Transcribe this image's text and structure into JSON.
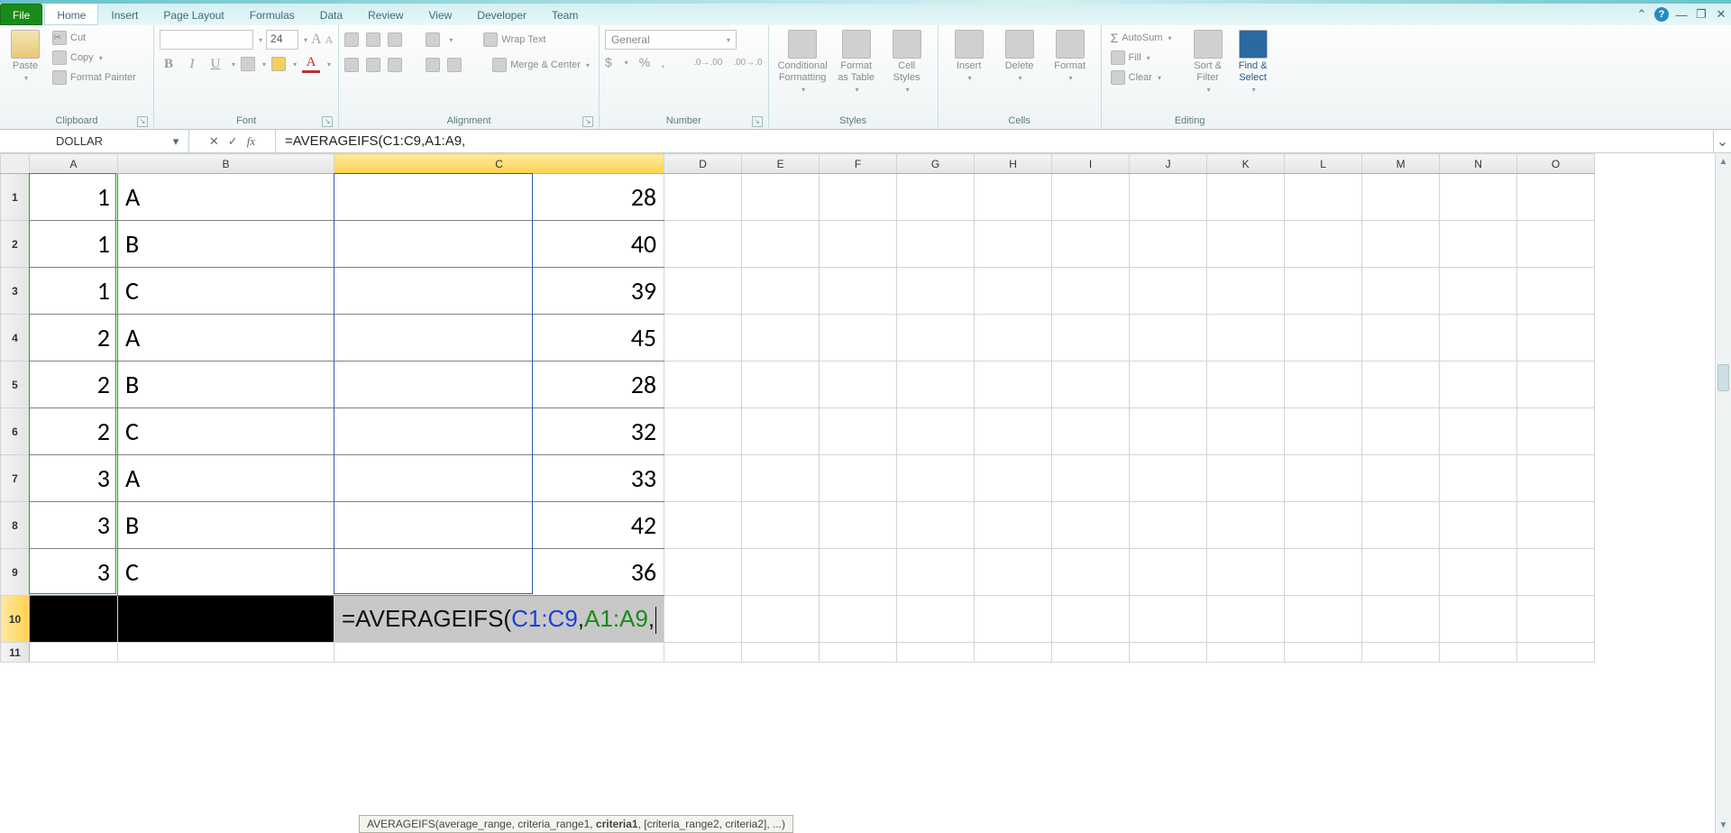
{
  "tabs": {
    "file": "File",
    "list": [
      "Home",
      "Insert",
      "Page Layout",
      "Formulas",
      "Data",
      "Review",
      "View",
      "Developer",
      "Team"
    ],
    "active": "Home"
  },
  "ribbon": {
    "clipboard": {
      "title": "Clipboard",
      "paste": "Paste",
      "cut": "Cut",
      "copy": "Copy",
      "painter": "Format Painter"
    },
    "font": {
      "title": "Font",
      "size": "24"
    },
    "alignment": {
      "title": "Alignment",
      "wrap": "Wrap Text",
      "merge": "Merge & Center"
    },
    "number": {
      "title": "Number",
      "format": "General"
    },
    "styles": {
      "title": "Styles",
      "cond": "Conditional\nFormatting",
      "table": "Format\nas Table",
      "cell": "Cell\nStyles"
    },
    "cells": {
      "title": "Cells",
      "insert": "Insert",
      "delete": "Delete",
      "format": "Format"
    },
    "editing": {
      "title": "Editing",
      "autosum": "AutoSum",
      "fill": "Fill",
      "clear": "Clear",
      "sort": "Sort &\nFilter",
      "find": "Find &\nSelect"
    }
  },
  "formulaBar": {
    "nameBox": "DOLLAR",
    "formula": "=AVERAGEIFS(C1:C9,A1:A9,"
  },
  "columns": [
    "A",
    "B",
    "C",
    "D",
    "E",
    "F",
    "G",
    "H",
    "I",
    "J",
    "K",
    "L",
    "M",
    "N",
    "O"
  ],
  "colWidths": {
    "A": 98,
    "B": 240,
    "C": 222,
    "rest": 86
  },
  "dataRows": [
    {
      "a": "1",
      "b": "A",
      "c": "28"
    },
    {
      "a": "1",
      "b": "B",
      "c": "40"
    },
    {
      "a": "1",
      "b": "C",
      "c": "39"
    },
    {
      "a": "2",
      "b": "A",
      "c": "45"
    },
    {
      "a": "2",
      "b": "B",
      "c": "28"
    },
    {
      "a": "2",
      "b": "C",
      "c": "32"
    },
    {
      "a": "3",
      "b": "A",
      "c": "33"
    },
    {
      "a": "3",
      "b": "B",
      "c": "42"
    },
    {
      "a": "3",
      "b": "C",
      "c": "36"
    }
  ],
  "activeCell": {
    "row": 10,
    "col": "C"
  },
  "cellFormula": {
    "prefix": "=AVERAGEIFS(",
    "range1": "C1:C9",
    "sep": ",",
    "range2": "A1:A9",
    "suffix": ","
  },
  "tooltip": {
    "fn": "AVERAGEIFS",
    "sig_pre": "(average_range, criteria_range1, ",
    "sig_bold": "criteria1",
    "sig_post": ", [criteria_range2, criteria2], ...)"
  },
  "colors": {
    "tabActiveBg": "#ffffff",
    "fileTab": "#1a8a1a",
    "colSelect": "#ffd34e",
    "marqueeBlue": "#2a5db0",
    "marqueeGreen": "#18a818",
    "formulaBlue": "#1a3fd6",
    "formulaGreen": "#1a8a1a"
  }
}
